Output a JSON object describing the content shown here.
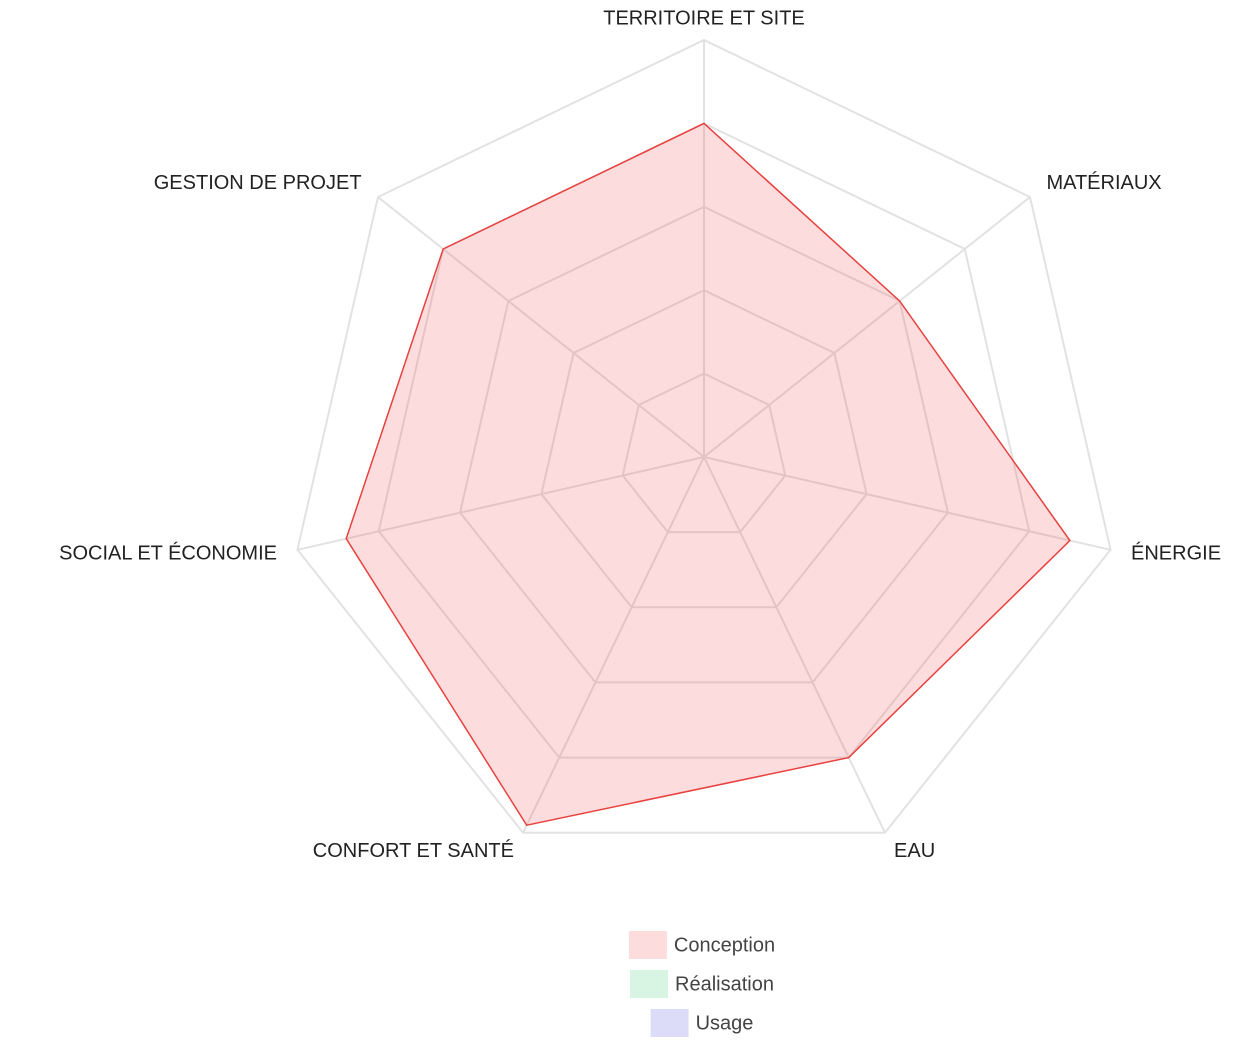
{
  "chart_data": {
    "type": "radar",
    "categories": [
      "TERRITOIRE ET SITE",
      "MATÉRIAUX",
      "ÉNERGIE",
      "EAU",
      "CONFORT ET SANTÉ",
      "SOCIAL ET ÉCONOMIE",
      "GESTION DE PROJET"
    ],
    "rlim": [
      0,
      5
    ],
    "rticks": [
      1,
      2,
      3,
      4,
      5
    ],
    "grid": true,
    "legend": "bottom",
    "series": [
      {
        "name": "Conception",
        "color": "#e8413f",
        "fill": "rgba(240,80,80,0.2)",
        "values": [
          4,
          3,
          4.5,
          4,
          4.9,
          4.4,
          4
        ]
      },
      {
        "name": "Réalisation",
        "color": "#34c56a",
        "fill": "rgba(60,200,110,0.2)",
        "values": [
          0,
          0,
          0,
          0,
          0,
          0,
          0
        ]
      },
      {
        "name": "Usage",
        "color": "#3a3ad8",
        "fill": "rgba(80,80,220,0.2)",
        "values": [
          0,
          0,
          0,
          0,
          0,
          0,
          0
        ]
      }
    ]
  }
}
